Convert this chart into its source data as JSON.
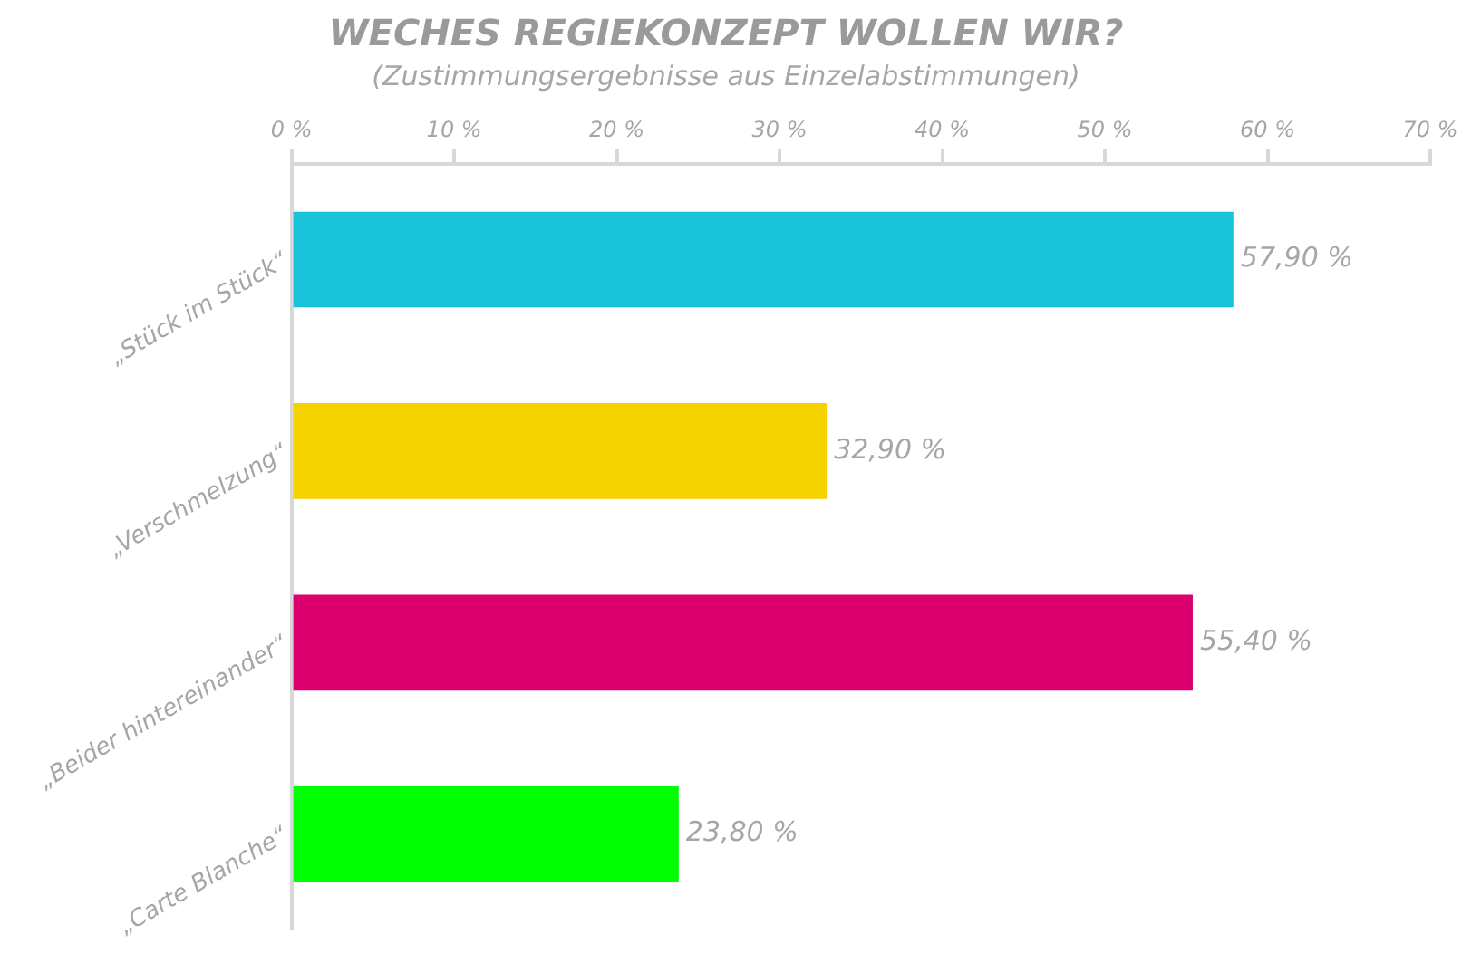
{
  "chart_data": {
    "type": "bar",
    "orientation": "horizontal",
    "title": "WECHES REGIEKONZEPT WOLLEN WIR?",
    "subtitle": "(Zustimmungsergebnisse aus Einzelabstimmungen)",
    "categories": [
      "„Stück im Stück“",
      "„Verschmelzung“",
      "„Beider hintereinander“",
      "„Carte Blanche“"
    ],
    "values": [
      57.9,
      32.9,
      55.4,
      23.8
    ],
    "colors": [
      "#19c3da",
      "#f5d300",
      "#dc006e",
      "#00ff00"
    ],
    "value_labels": [
      "57,90 %",
      "32,90 %",
      "55,40 %",
      "23,80 %"
    ],
    "xlim": [
      0,
      70
    ],
    "xticks": [
      {
        "value": 0,
        "label": "0 %"
      },
      {
        "value": 10,
        "label": "10 %"
      },
      {
        "value": 20,
        "label": "20 %"
      },
      {
        "value": 30,
        "label": "30 %"
      },
      {
        "value": 40,
        "label": "40 %"
      },
      {
        "value": 50,
        "label": "50 %"
      },
      {
        "value": 60,
        "label": "60 %"
      },
      {
        "value": 70,
        "label": "70 %"
      }
    ],
    "grid": false,
    "legend": false
  }
}
